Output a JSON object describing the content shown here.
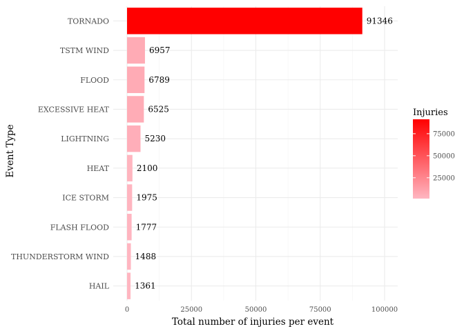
{
  "chart_data": {
    "type": "bar",
    "orientation": "horizontal",
    "categories": [
      "TORNADO",
      "TSTM WIND",
      "FLOOD",
      "EXCESSIVE HEAT",
      "LIGHTNING",
      "HEAT",
      "ICE STORM",
      "FLASH FLOOD",
      "THUNDERSTORM WIND",
      "HAIL"
    ],
    "values": [
      91346,
      6957,
      6789,
      6525,
      5230,
      2100,
      1975,
      1777,
      1488,
      1361
    ],
    "xlabel": "Total number of injuries per event",
    "ylabel": "Event Type",
    "xlim": [
      0,
      105000
    ],
    "xticks": [
      0,
      25000,
      50000,
      75000,
      100000
    ],
    "grid": true,
    "legend": {
      "title": "Injuries",
      "placement": "right",
      "ticks": [
        25000,
        50000,
        75000
      ],
      "color_low": "#ffb6c1",
      "color_high": "#ff0000",
      "range": [
        1361,
        91346
      ]
    }
  }
}
